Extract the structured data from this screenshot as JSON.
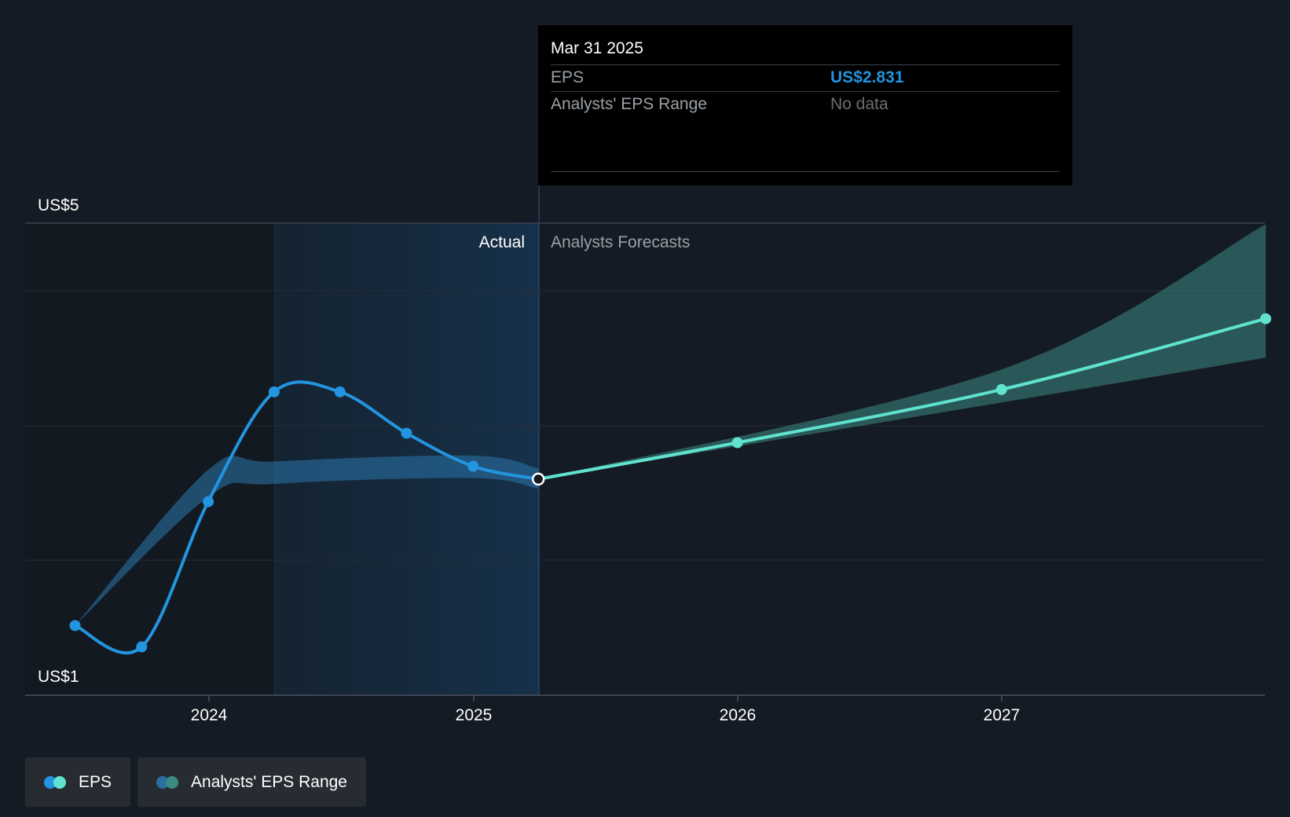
{
  "chart_data": {
    "type": "line",
    "y_axis_labels": [
      "US$5",
      "US$1"
    ],
    "ylim": [
      1,
      5
    ],
    "x_ticks": [
      "2024",
      "2025",
      "2026",
      "2027"
    ],
    "section_labels": {
      "actual": "Actual",
      "forecast": "Analysts Forecasts"
    },
    "series": [
      {
        "name": "EPS",
        "x": [
          "2023-06-30",
          "2023-09-30",
          "2023-12-31",
          "2024-03-31",
          "2024-06-30",
          "2024-09-30",
          "2024-12-31",
          "2025-03-31"
        ],
        "values": [
          1.59,
          1.41,
          2.64,
          3.57,
          3.57,
          3.22,
          2.94,
          2.831
        ]
      },
      {
        "name": "EPS",
        "x": [
          "2025-03-31",
          "2025-12-31",
          "2026-12-31",
          "2027-12-31"
        ],
        "values": [
          2.831,
          3.14,
          3.59,
          4.19
        ]
      },
      {
        "name": "Analysts' EPS Range",
        "x": [
          "2023-06-30",
          "2023-12-31",
          "2024-03-31",
          "2024-12-31",
          "2025-03-31"
        ],
        "high": [
          1.59,
          2.91,
          2.98,
          3.03,
          2.92
        ],
        "low": [
          1.59,
          2.68,
          2.79,
          2.84,
          2.75
        ]
      },
      {
        "name": "Analysts' EPS Range",
        "x": [
          "2025-03-31",
          "2026-12-31",
          "2027-12-31"
        ],
        "high": [
          2.831,
          3.76,
          4.99
        ],
        "low": [
          2.831,
          3.48,
          3.86
        ]
      }
    ]
  },
  "tooltip": {
    "date": "Mar 31 2025",
    "eps_label": "EPS",
    "eps_value": "US$2.831",
    "range_label": "Analysts' EPS Range",
    "range_value": "No data"
  },
  "legend": {
    "eps_label": "EPS",
    "range_label": "Analysts' EPS Range"
  },
  "colors": {
    "eps_actual": "#2394df",
    "eps_forecast": "#5fe3cf",
    "range_actual": "#2a6fa3",
    "range_forecast": "#3d8a83"
  }
}
